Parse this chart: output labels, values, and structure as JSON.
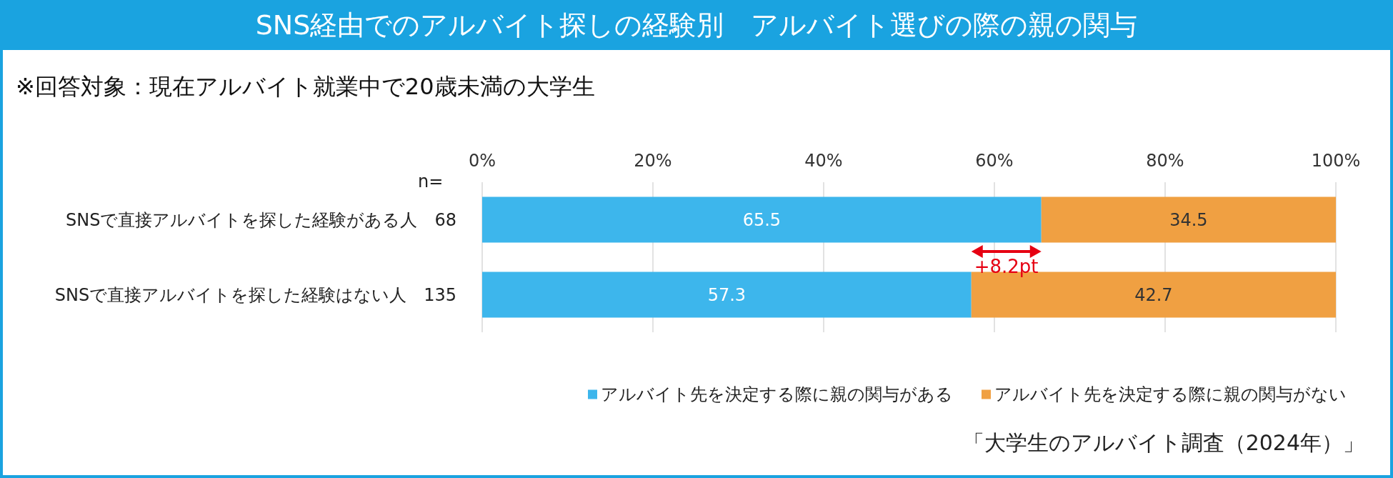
{
  "chart_data": {
    "type": "bar",
    "orientation": "horizontal",
    "stacked": true,
    "title": "SNS経由でのアルバイト探しの経験別　アルバイト選びの際の親の関与",
    "subtitle": "※回答対象：現在アルバイト就業中で20歳未満の大学生",
    "categories": [
      "SNSで直接アルバイトを探した経験がある人　68",
      "SNSで直接アルバイトを探した経験はない人　135"
    ],
    "series": [
      {
        "name": "アルバイト先を決定する際に親の関与がある",
        "color": "#3db6ec",
        "values": [
          65.5,
          57.3
        ]
      },
      {
        "name": "アルバイト先を決定する際に親の関与がない",
        "color": "#f0a042",
        "values": [
          34.5,
          42.7
        ]
      }
    ],
    "xlim": [
      0,
      100
    ],
    "xticks": [
      {
        "value": 0,
        "label": "0%"
      },
      {
        "value": 20,
        "label": "20%"
      },
      {
        "value": 40,
        "label": "40%"
      },
      {
        "value": 60,
        "label": "60%"
      },
      {
        "value": 80,
        "label": "80%"
      },
      {
        "value": 100,
        "label": "100%"
      }
    ],
    "data_labels": true,
    "grid": "x",
    "legend": "bottom right",
    "annotations": [
      "n=",
      "+8.2pt",
      "「大学生のアルバイト調査（2024年）」"
    ]
  }
}
